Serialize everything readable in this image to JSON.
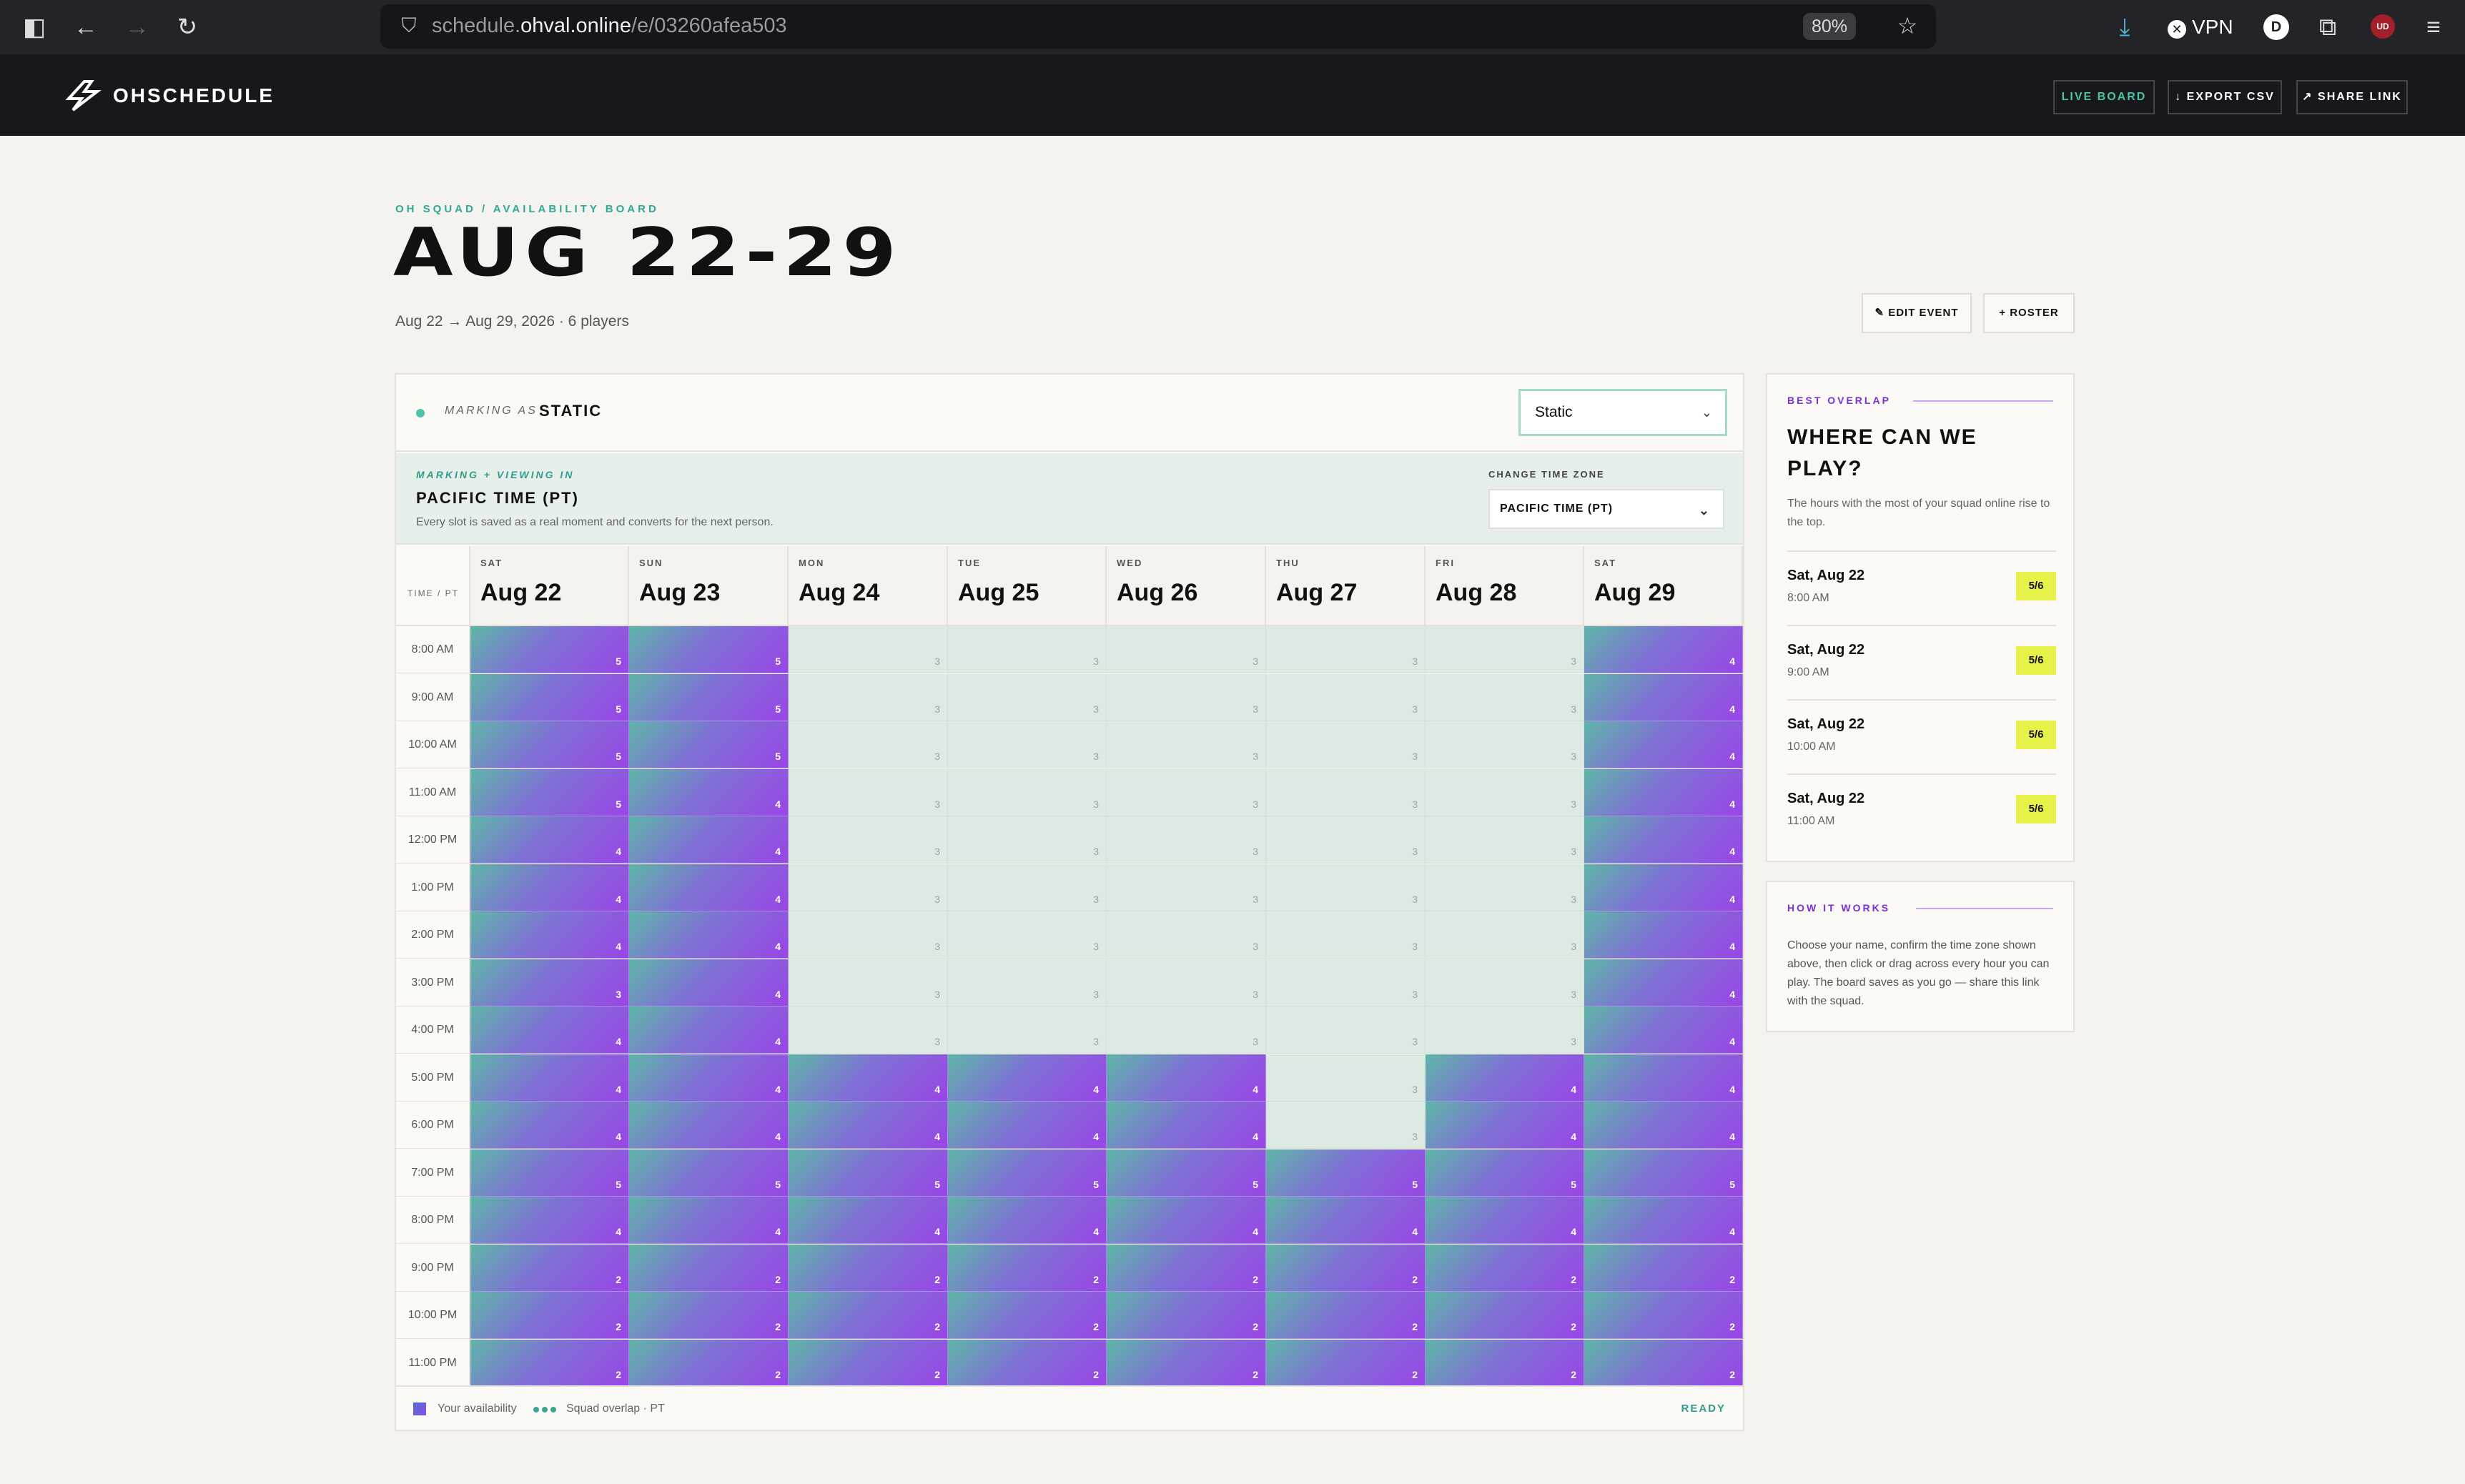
{
  "browser": {
    "url_prefix": "schedule.",
    "url_domain": "ohval.online",
    "url_path": "/e/03260afea503",
    "zoom": "80%",
    "vpn": "VPN",
    "profile_initial": "D",
    "ext_badge": "UD"
  },
  "app": {
    "logo": "OHSCHEDULE",
    "buttons": {
      "live": "LIVE BOARD",
      "export": "↓ EXPORT CSV",
      "share": "↗ SHARE LINK"
    }
  },
  "header": {
    "eyebrow": "OH SQUAD / AVAILABILITY BOARD",
    "title": "AUG 22-29",
    "subtitle": "Aug 22 → Aug 29, 2026 · 6 players",
    "edit": "✎ EDIT EVENT",
    "roster": "+ ROSTER"
  },
  "marking": {
    "label": "MARKING AS",
    "name": "STATIC",
    "select": "Static"
  },
  "timezone": {
    "label": "MARKING + VIEWING IN",
    "name": "PACIFIC TIME (PT)",
    "note": "Every slot is saved as a real moment and converts for the next person.",
    "change_label": "CHANGE TIME ZONE",
    "select": "PACIFIC TIME (PT)"
  },
  "grid": {
    "time_header": "TIME / PT",
    "days": [
      {
        "dow": "SAT",
        "date": "Aug 22"
      },
      {
        "dow": "SUN",
        "date": "Aug 23"
      },
      {
        "dow": "MON",
        "date": "Aug 24"
      },
      {
        "dow": "TUE",
        "date": "Aug 25"
      },
      {
        "dow": "WED",
        "date": "Aug 26"
      },
      {
        "dow": "THU",
        "date": "Aug 27"
      },
      {
        "dow": "FRI",
        "date": "Aug 28"
      },
      {
        "dow": "SAT",
        "date": "Aug 29"
      }
    ],
    "times": [
      "8:00 AM",
      "9:00 AM",
      "10:00 AM",
      "11:00 AM",
      "12:00 PM",
      "1:00 PM",
      "2:00 PM",
      "3:00 PM",
      "4:00 PM",
      "5:00 PM",
      "6:00 PM",
      "7:00 PM",
      "8:00 PM",
      "9:00 PM",
      "10:00 PM",
      "11:00 PM"
    ],
    "counts": [
      [
        5,
        5,
        3,
        3,
        3,
        3,
        3,
        4
      ],
      [
        5,
        5,
        3,
        3,
        3,
        3,
        3,
        4
      ],
      [
        5,
        5,
        3,
        3,
        3,
        3,
        3,
        4
      ],
      [
        5,
        4,
        3,
        3,
        3,
        3,
        3,
        4
      ],
      [
        4,
        4,
        3,
        3,
        3,
        3,
        3,
        4
      ],
      [
        4,
        4,
        3,
        3,
        3,
        3,
        3,
        4
      ],
      [
        4,
        4,
        3,
        3,
        3,
        3,
        3,
        4
      ],
      [
        3,
        4,
        3,
        3,
        3,
        3,
        3,
        4
      ],
      [
        4,
        4,
        3,
        3,
        3,
        3,
        3,
        4
      ],
      [
        4,
        4,
        4,
        4,
        4,
        3,
        4,
        4
      ],
      [
        4,
        4,
        4,
        4,
        4,
        3,
        4,
        4
      ],
      [
        5,
        5,
        5,
        5,
        5,
        5,
        5,
        5
      ],
      [
        4,
        4,
        4,
        4,
        4,
        4,
        4,
        4
      ],
      [
        2,
        2,
        2,
        2,
        2,
        2,
        2,
        2
      ],
      [
        2,
        2,
        2,
        2,
        2,
        2,
        2,
        2
      ],
      [
        2,
        2,
        2,
        2,
        2,
        2,
        2,
        2
      ]
    ],
    "selected": [
      [
        1,
        1,
        0,
        0,
        0,
        0,
        0,
        1
      ],
      [
        1,
        1,
        0,
        0,
        0,
        0,
        0,
        1
      ],
      [
        1,
        1,
        0,
        0,
        0,
        0,
        0,
        1
      ],
      [
        1,
        1,
        0,
        0,
        0,
        0,
        0,
        1
      ],
      [
        1,
        1,
        0,
        0,
        0,
        0,
        0,
        1
      ],
      [
        1,
        1,
        0,
        0,
        0,
        0,
        0,
        1
      ],
      [
        1,
        1,
        0,
        0,
        0,
        0,
        0,
        1
      ],
      [
        1,
        1,
        0,
        0,
        0,
        0,
        0,
        1
      ],
      [
        1,
        1,
        0,
        0,
        0,
        0,
        0,
        1
      ],
      [
        1,
        1,
        1,
        1,
        1,
        0,
        1,
        1
      ],
      [
        1,
        1,
        1,
        1,
        1,
        0,
        1,
        1
      ],
      [
        1,
        1,
        1,
        1,
        1,
        1,
        1,
        1
      ],
      [
        1,
        1,
        1,
        1,
        1,
        1,
        1,
        1
      ],
      [
        1,
        1,
        1,
        1,
        1,
        1,
        1,
        1
      ],
      [
        1,
        1,
        1,
        1,
        1,
        1,
        1,
        1
      ],
      [
        1,
        1,
        1,
        1,
        1,
        1,
        1,
        1
      ]
    ]
  },
  "legend": {
    "yours": "Your availability",
    "overlap": "Squad overlap · PT",
    "status": "READY"
  },
  "best": {
    "eyebrow": "BEST OVERLAP",
    "title": "WHERE CAN WE PLAY?",
    "desc": "The hours with the most of your squad online rise to the top.",
    "items": [
      {
        "date": "Sat, Aug 22",
        "time": "8:00 AM",
        "score": "5/6"
      },
      {
        "date": "Sat, Aug 22",
        "time": "9:00 AM",
        "score": "5/6"
      },
      {
        "date": "Sat, Aug 22",
        "time": "10:00 AM",
        "score": "5/6"
      },
      {
        "date": "Sat, Aug 22",
        "time": "11:00 AM",
        "score": "5/6"
      }
    ]
  },
  "how": {
    "eyebrow": "HOW IT WORKS",
    "desc": "Choose your name, confirm the time zone shown above, then click or drag across every hour you can play. The board saves as you go — share this link with the squad."
  },
  "colors": {
    "accent": "#2faa92",
    "purple": "#8b4ee6",
    "highlight": "#e6f24a"
  }
}
